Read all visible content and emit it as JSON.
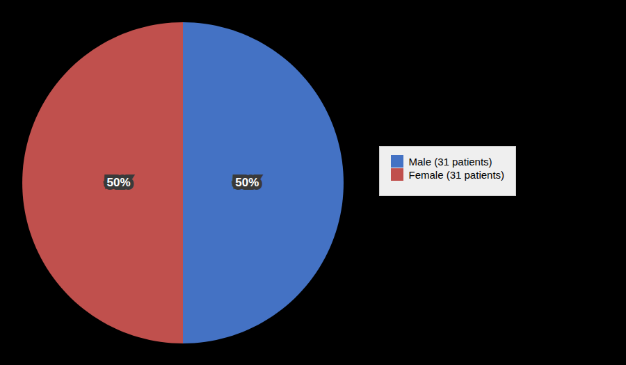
{
  "chart_data": {
    "type": "pie",
    "categories": [
      "Male (31 patients)",
      "Female (31 patients)"
    ],
    "values": [
      50,
      50
    ],
    "value_labels": [
      "50%",
      "50%"
    ],
    "colors": [
      "#4472C4",
      "#C0504D"
    ],
    "data_labels": true,
    "legend": "right"
  }
}
